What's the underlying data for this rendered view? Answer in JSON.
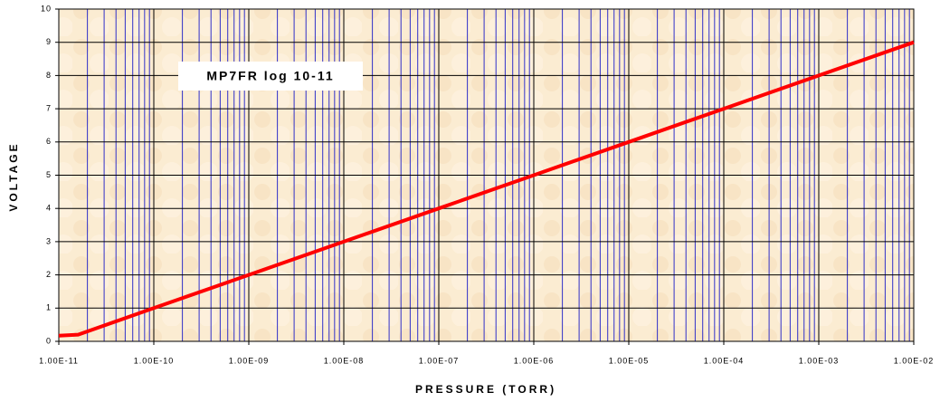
{
  "chart_data": {
    "type": "line",
    "xlabel": "PRESSURE (TORR)",
    "ylabel": "VOLTAGE",
    "annotation": "MP7FR log 10-11",
    "xscale": "log",
    "grid": true,
    "minor_grid": true,
    "x": [
      1e-11,
      1.6e-11,
      1e-10,
      1e-09,
      1e-08,
      1e-07,
      1e-06,
      1e-05,
      0.0001,
      0.001,
      0.01
    ],
    "series": [
      {
        "color": "#ff0000",
        "values": [
          0.17,
          0.2,
          1,
          2,
          3,
          4,
          5,
          6,
          7,
          8,
          9
        ]
      }
    ],
    "xlim": [
      1e-11,
      0.01
    ],
    "ylim": [
      0,
      10
    ],
    "xticks": [
      {
        "value": 1e-11,
        "label": "1.00E-11"
      },
      {
        "value": 1e-10,
        "label": "1.00E-10"
      },
      {
        "value": 1e-09,
        "label": "1.00E-09"
      },
      {
        "value": 1e-08,
        "label": "1.00E-08"
      },
      {
        "value": 1e-07,
        "label": "1.00E-07"
      },
      {
        "value": 1e-06,
        "label": "1.00E-06"
      },
      {
        "value": 1e-05,
        "label": "1.00E-05"
      },
      {
        "value": 0.0001,
        "label": "1.00E-04"
      },
      {
        "value": 0.001,
        "label": "1.00E-03"
      },
      {
        "value": 0.01,
        "label": "1.00E-02"
      }
    ],
    "yticks": [
      0,
      1,
      2,
      3,
      4,
      5,
      6,
      7,
      8,
      9,
      10
    ]
  }
}
